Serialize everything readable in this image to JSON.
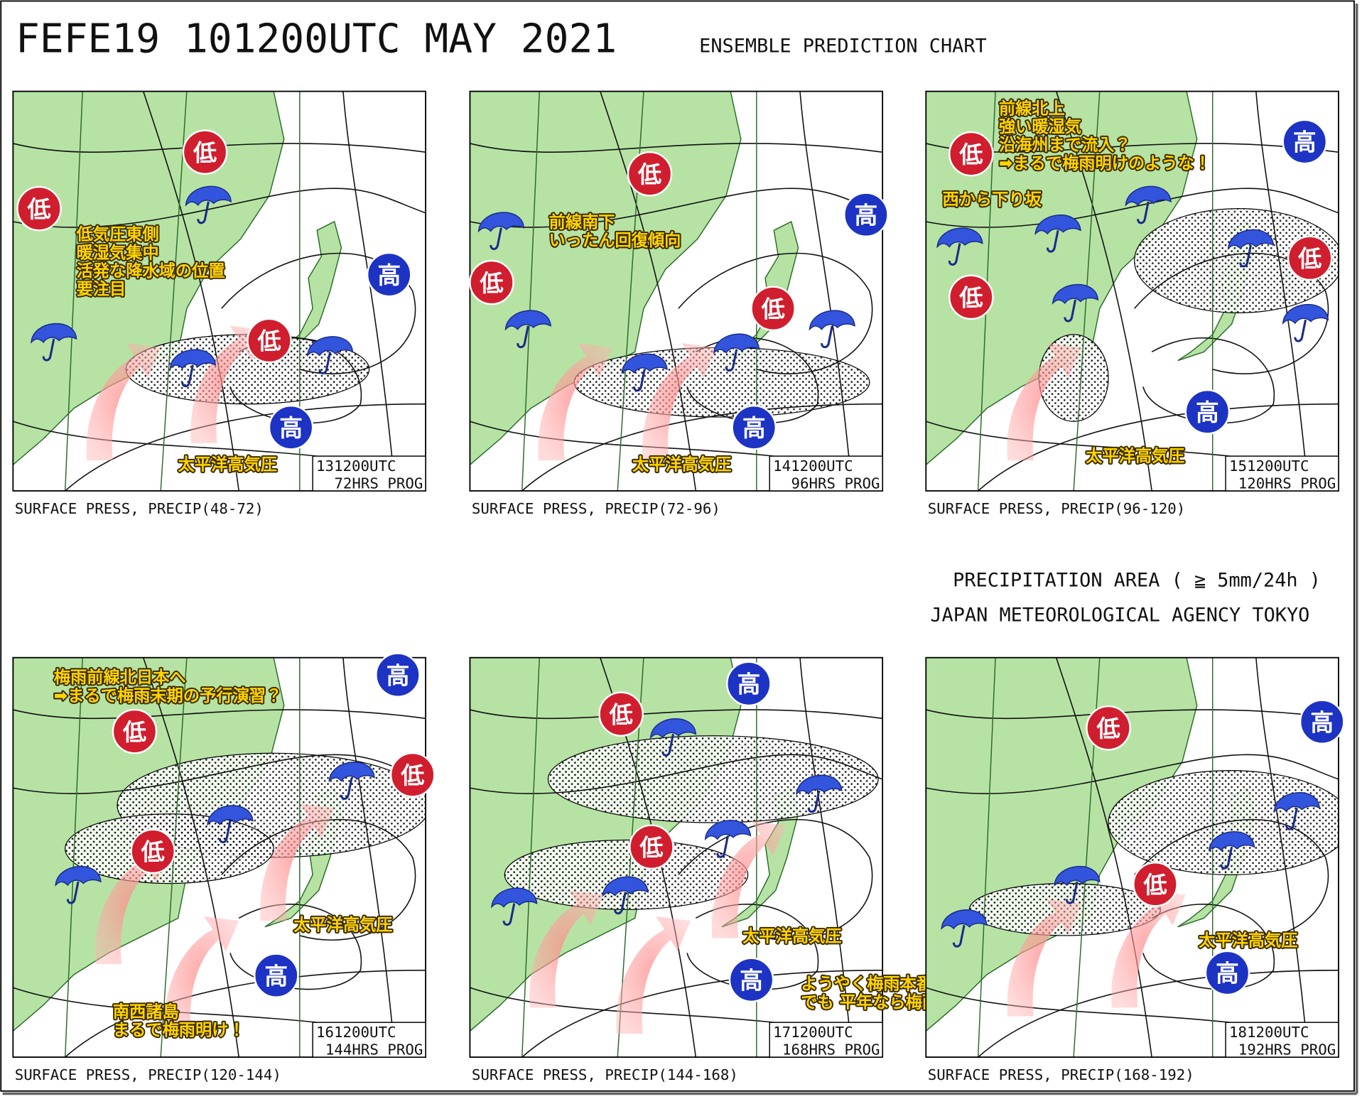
{
  "header": {
    "title": "FEFE19  101200UTC MAY 2021",
    "subtitle": "ENSEMBLE PREDICTION CHART"
  },
  "legend": {
    "precip": "PRECIPITATION AREA ( ≧ 5mm/24h )",
    "agency": "JAPAN METEOROLOGICAL AGENCY TOKYO"
  },
  "panels": [
    {
      "valid": "131200UTC",
      "prog": "72HRS PROG",
      "caption": "SURFACE PRESS, PRECIP(48-72)",
      "systems": [
        {
          "label": "低",
          "color": "#d01e2e"
        },
        {
          "label": "低",
          "color": "#d01e2e"
        },
        {
          "label": "低",
          "color": "#d01e2e"
        },
        {
          "label": "高",
          "color": "#1d33c4"
        },
        {
          "label": "高",
          "color": "#1d33c4"
        }
      ],
      "notes": [
        [
          "低気圧東側",
          "暖湿気集中",
          "活発な降水域の位置",
          "要注目"
        ],
        [
          "太平洋高気圧"
        ]
      ]
    },
    {
      "valid": "141200UTC",
      "prog": "96HRS PROG",
      "caption": "SURFACE PRESS, PRECIP(72-96)",
      "systems": [
        {
          "label": "低",
          "color": "#d01e2e"
        },
        {
          "label": "低",
          "color": "#d01e2e"
        },
        {
          "label": "低",
          "color": "#d01e2e"
        },
        {
          "label": "高",
          "color": "#1d33c4"
        },
        {
          "label": "高",
          "color": "#1d33c4"
        }
      ],
      "notes": [
        [
          "前線南下",
          "いったん回復傾向"
        ],
        [
          "太平洋高気圧"
        ]
      ]
    },
    {
      "valid": "151200UTC",
      "prog": "120HRS PROG",
      "caption": "SURFACE PRESS, PRECIP(96-120)",
      "systems": [
        {
          "label": "低",
          "color": "#d01e2e"
        },
        {
          "label": "低",
          "color": "#d01e2e"
        },
        {
          "label": "低",
          "color": "#d01e2e"
        },
        {
          "label": "高",
          "color": "#1d33c4"
        },
        {
          "label": "高",
          "color": "#1d33c4"
        }
      ],
      "notes": [
        [
          "前線北上",
          "強い暖湿気",
          "沿海州まで流入？",
          "➡まるで梅雨明けのような！"
        ],
        [
          "西から下り坂"
        ],
        [
          "太平洋高気圧"
        ]
      ]
    },
    {
      "valid": "161200UTC",
      "prog": "144HRS PROG",
      "caption": "SURFACE PRESS, PRECIP(120-144)",
      "systems": [
        {
          "label": "低",
          "color": "#d01e2e"
        },
        {
          "label": "低",
          "color": "#d01e2e"
        },
        {
          "label": "低",
          "color": "#d01e2e"
        },
        {
          "label": "高",
          "color": "#1d33c4"
        },
        {
          "label": "高",
          "color": "#1d33c4"
        }
      ],
      "notes": [
        [
          "梅雨前線北日本へ",
          "➡まるで梅雨末期の予行演習？"
        ],
        [
          "太平洋高気圧"
        ],
        [
          "南西諸島",
          "まるで梅雨明け！"
        ]
      ]
    },
    {
      "valid": "171200UTC",
      "prog": "168HRS PROG",
      "caption": "SURFACE PRESS, PRECIP(144-168)",
      "systems": [
        {
          "label": "低",
          "color": "#d01e2e"
        },
        {
          "label": "低",
          "color": "#d01e2e"
        },
        {
          "label": "高",
          "color": "#1d33c4"
        },
        {
          "label": "高",
          "color": "#1d33c4"
        }
      ],
      "notes": [
        [
          "太平洋高気圧"
        ],
        [
          "ようやく梅雨本番・・・",
          "でも 平年なら梅雨のはしりだけど？"
        ]
      ]
    },
    {
      "valid": "181200UTC",
      "prog": "192HRS PROG",
      "caption": "SURFACE PRESS, PRECIP(168-192)",
      "systems": [
        {
          "label": "低",
          "color": "#d01e2e"
        },
        {
          "label": "低",
          "color": "#d01e2e"
        },
        {
          "label": "高",
          "color": "#1d33c4"
        },
        {
          "label": "高",
          "color": "#1d33c4"
        }
      ],
      "notes": [
        [
          "太平洋高気圧"
        ]
      ]
    }
  ]
}
